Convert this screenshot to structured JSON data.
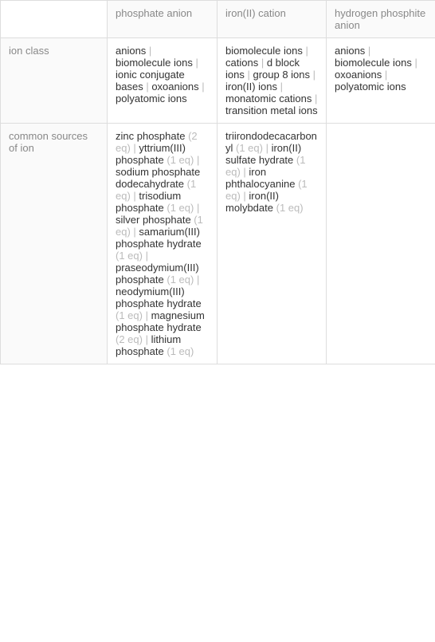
{
  "columns": [
    "phosphate anion",
    "iron(II) cation",
    "hydrogen phosphite anion"
  ],
  "rows": [
    {
      "header": "ion class",
      "cells": [
        {
          "items": [
            {
              "text": "anions"
            },
            {
              "text": "biomolecule ions"
            },
            {
              "text": "ionic conjugate bases"
            },
            {
              "text": "oxoanions"
            },
            {
              "text": "polyatomic ions"
            }
          ]
        },
        {
          "items": [
            {
              "text": "biomolecule ions"
            },
            {
              "text": "cations"
            },
            {
              "text": "d block ions"
            },
            {
              "text": "group 8 ions"
            },
            {
              "text": "iron(II) ions"
            },
            {
              "text": "monatomic cations"
            },
            {
              "text": "transition metal ions"
            }
          ]
        },
        {
          "items": [
            {
              "text": "anions"
            },
            {
              "text": "biomolecule ions"
            },
            {
              "text": "oxoanions"
            },
            {
              "text": "polyatomic ions"
            }
          ]
        }
      ]
    },
    {
      "header": "common sources of ion",
      "cells": [
        {
          "items": [
            {
              "text": "zinc phosphate",
              "eq": "(2 eq)"
            },
            {
              "text": "yttrium(III) phosphate",
              "eq": "(1 eq)"
            },
            {
              "text": "sodium phosphate dodecahydrate",
              "eq": "(1 eq)"
            },
            {
              "text": "trisodium phosphate",
              "eq": "(1 eq)"
            },
            {
              "text": "silver phosphate",
              "eq": "(1 eq)"
            },
            {
              "text": "samarium(III) phosphate hydrate",
              "eq": "(1 eq)"
            },
            {
              "text": "praseodymium(III) phosphate",
              "eq": "(1 eq)"
            },
            {
              "text": "neodymium(III) phosphate hydrate",
              "eq": "(1 eq)"
            },
            {
              "text": "magnesium phosphate hydrate",
              "eq": "(2 eq)"
            },
            {
              "text": "lithium phosphate",
              "eq": "(1 eq)"
            }
          ]
        },
        {
          "items": [
            {
              "text": "triirondodecacarbonyl",
              "eq": "(1 eq)"
            },
            {
              "text": "iron(II) sulfate hydrate",
              "eq": "(1 eq)"
            },
            {
              "text": "iron phthalocyanine",
              "eq": "(1 eq)"
            },
            {
              "text": "iron(II) molybdate",
              "eq": "(1 eq)"
            }
          ]
        },
        {
          "items": []
        }
      ]
    }
  ],
  "separator": " | ",
  "colors": {
    "text": "#333333",
    "muted": "#888888",
    "sep": "#bbbbbb",
    "border": "#dddddd",
    "header_bg": "#fafafa",
    "bg": "#ffffff"
  },
  "font_size": 13
}
